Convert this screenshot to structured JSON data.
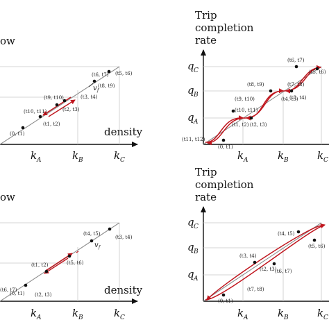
{
  "panels": {
    "top_left": {
      "y_axis_label_fragment": "ow",
      "x_axis_label": "density",
      "x_ticks": [
        {
          "main": "k",
          "sub": "A"
        },
        {
          "main": "k",
          "sub": "B"
        },
        {
          "main": "k",
          "sub": "C"
        }
      ],
      "points": [
        {
          "m": "(t",
          "a": "6",
          "c": ", t",
          "b": "7",
          "e": ")"
        },
        {
          "m": "(t",
          "a": "5",
          "c": ", t",
          "b": "6",
          "e": ")"
        },
        {
          "m": "(t",
          "a": "8",
          "c": ", t",
          "b": "9",
          "e": ")"
        },
        {
          "m": "(t",
          "a": "3",
          "c": ", t",
          "b": "4",
          "e": ")"
        },
        {
          "m": "(t",
          "a": "9",
          "c": ", t",
          "b": "10",
          "e": ")"
        },
        {
          "m": "(t",
          "a": "2",
          "c": ", t",
          "b": "3",
          "e": ")"
        },
        {
          "m": "(t",
          "a": "1",
          "c": ", t",
          "b": "2",
          "e": ")"
        },
        {
          "m": "(t",
          "a": "10",
          "c": ", t",
          "b": "11",
          "e": ")"
        },
        {
          "m": "(0, t",
          "a": "",
          "c": "",
          "b": "1",
          "e": ")"
        }
      ],
      "v_label": {
        "m": "v",
        "sub": "f"
      }
    },
    "top_right": {
      "title_line1": "Trip",
      "title_line2": "completion",
      "title_line3": "rate",
      "y_ticks": [
        {
          "main": "q",
          "sub": "C"
        },
        {
          "main": "q",
          "sub": "B"
        },
        {
          "main": "q",
          "sub": "A"
        }
      ],
      "x_ticks": [
        {
          "main": "k",
          "sub": "A"
        },
        {
          "main": "k",
          "sub": "B"
        },
        {
          "main": "k",
          "sub": "C"
        }
      ]
    },
    "bottom_left": {
      "y_axis_label_fragment": "ow",
      "x_axis_label": "density",
      "x_ticks": [
        {
          "main": "k",
          "sub": "A"
        },
        {
          "main": "k",
          "sub": "B"
        },
        {
          "main": "k",
          "sub": "C"
        }
      ],
      "v_label": {
        "m": "v",
        "sub": "f"
      }
    },
    "bottom_right": {
      "title_line1": "Trip",
      "title_line2": "completion",
      "title_line3": "rate",
      "y_ticks": [
        {
          "main": "q",
          "sub": "C"
        },
        {
          "main": "q",
          "sub": "B"
        },
        {
          "main": "q",
          "sub": "A"
        }
      ],
      "x_ticks": [
        {
          "main": "k",
          "sub": "A"
        },
        {
          "main": "k",
          "sub": "B"
        },
        {
          "main": "k",
          "sub": "C"
        }
      ]
    }
  },
  "point_labels": {
    "tl": [
      "(t6, t7)",
      "(t5, t6)",
      "(t8, t9)",
      "(t3, t4)",
      "(t9, t10)",
      "(t2, t3)",
      "(t1, t2)",
      "(t10, t11)",
      "(0, t1)"
    ],
    "tr": [
      "(t6, t7)",
      "(t5, t6)",
      "(t8, t9)",
      "(t7, t8)",
      "(t3, t4)",
      "(t9, t10)",
      "(t10, t11)",
      "(t2, t3)",
      "(t4, t5)",
      "(t1, t2)",
      "(t11, t12)",
      "(0, t1)"
    ],
    "bl": [
      "(t4, t5)",
      "(t3, t4)",
      "(t1, t2)",
      "(t5, t6)",
      "(t2, t3)",
      "(t6, t7)",
      "(0, t1)"
    ],
    "br": [
      "(t4, t5)",
      "(t5, t6)",
      "(t3, t4)",
      "(t6, t7)",
      "(t2, t3)",
      "(t7, t8)",
      "(0, t1)"
    ]
  },
  "colors": {
    "axis": "#111111",
    "diagonal": "#9a9a9a",
    "guide": "#c8c8c8",
    "trajectory": "#c0161e",
    "point": "#111111"
  }
}
